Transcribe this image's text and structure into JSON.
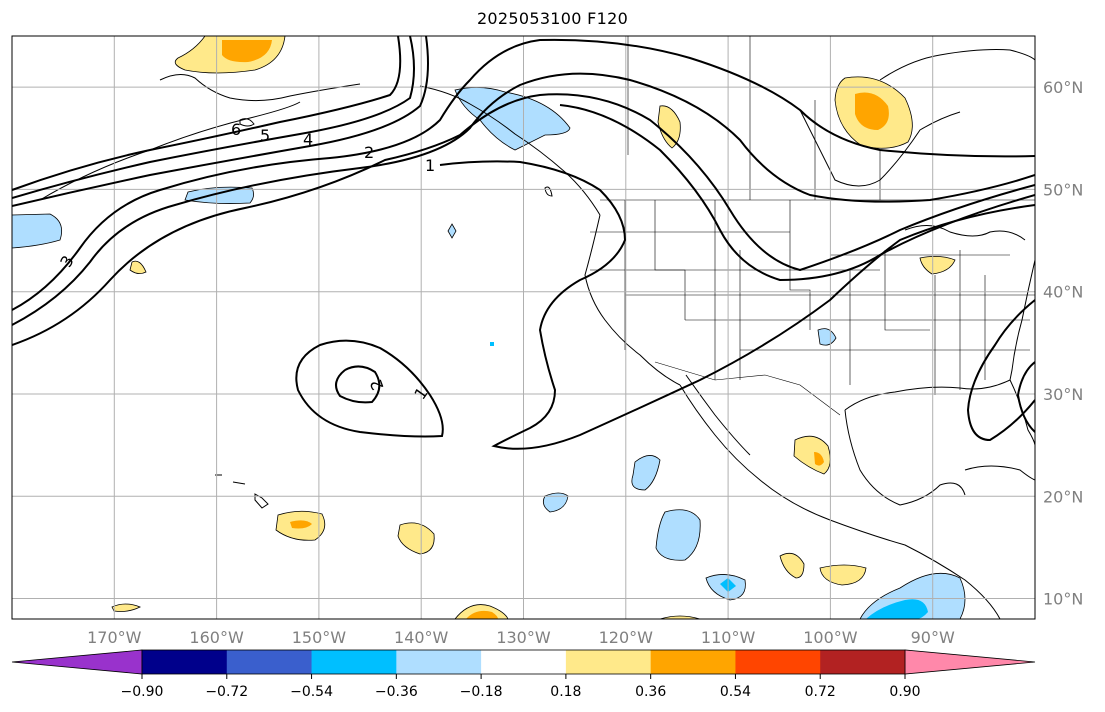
{
  "title": "2025053100 F120",
  "map": {
    "projection": "PlateCarree",
    "extent_lon": [
      -180,
      -80
    ],
    "extent_lat": [
      8,
      65
    ],
    "lon_ticks": [
      {
        "lon": -170,
        "label": "170°W"
      },
      {
        "lon": -160,
        "label": "160°W"
      },
      {
        "lon": -150,
        "label": "150°W"
      },
      {
        "lon": -140,
        "label": "140°W"
      },
      {
        "lon": -130,
        "label": "130°W"
      },
      {
        "lon": -120,
        "label": "120°W"
      },
      {
        "lon": -110,
        "label": "110°W"
      },
      {
        "lon": -100,
        "label": "100°W"
      },
      {
        "lon": -90,
        "label": "90°W"
      }
    ],
    "lat_ticks": [
      {
        "lat": 10,
        "label": "10°N"
      },
      {
        "lat": 20,
        "label": "20°N"
      },
      {
        "lat": 30,
        "label": "30°N"
      },
      {
        "lat": 40,
        "label": "40°N"
      },
      {
        "lat": 50,
        "label": "50°N"
      },
      {
        "lat": 60,
        "label": "60°N"
      }
    ],
    "gridlines": true,
    "contour_labels": [
      "6",
      "5",
      "4",
      "3",
      "2",
      "1",
      "1",
      "2"
    ]
  },
  "colorbar": {
    "levels": [
      "−0.90",
      "−0.72",
      "−0.54",
      "−0.36",
      "−0.18",
      "0.18",
      "0.36",
      "0.54",
      "0.72",
      "0.90"
    ],
    "colors": [
      "#9932cc",
      "#00008b",
      "#3a5fcd",
      "#00bfff",
      "#afdeff",
      "#ffffff",
      "#ffe98a",
      "#ffa500",
      "#ff4500",
      "#b22222",
      "#ff88aa"
    ],
    "extend": "both"
  }
}
